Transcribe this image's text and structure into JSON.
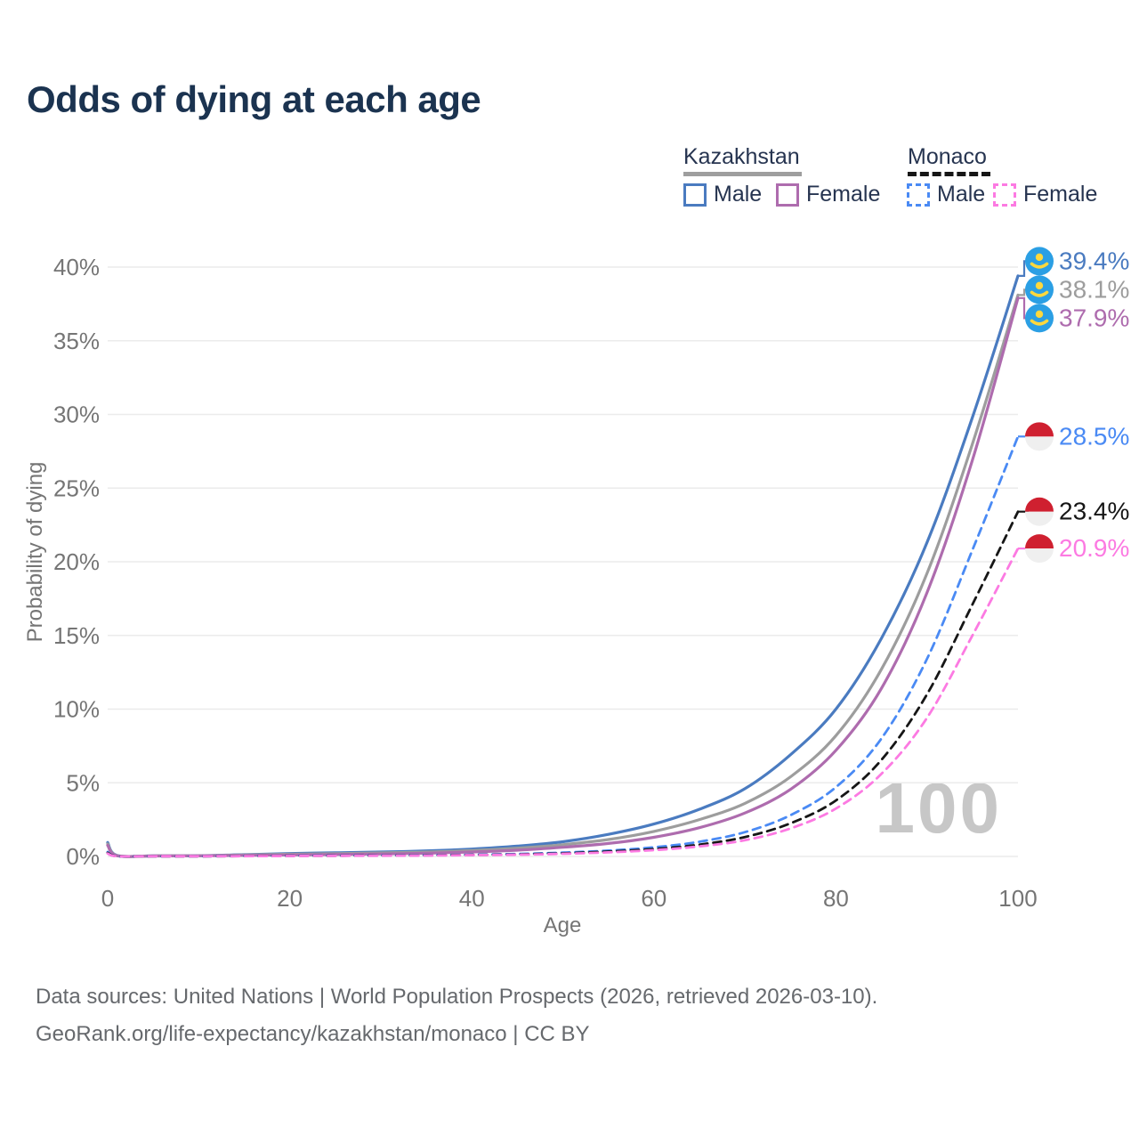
{
  "title": "Odds of dying at each age",
  "legend": {
    "groups": [
      {
        "label": "Kazakhstan",
        "underline_color": "#9e9e9e",
        "underline_style": "solid",
        "items": [
          {
            "label": "Male",
            "color": "#4a7bc0",
            "dash": false
          },
          {
            "label": "Female",
            "color": "#ae6cae",
            "dash": false
          }
        ]
      },
      {
        "label": "Monaco",
        "underline_color": "#161616",
        "underline_style": "dashed",
        "items": [
          {
            "label": "Male",
            "color": "#4a8af4",
            "dash": true
          },
          {
            "label": "Female",
            "color": "#fc7ae2",
            "dash": true
          }
        ]
      }
    ]
  },
  "chart_data": {
    "type": "line",
    "title": "Odds of dying at each age",
    "xlabel": "Age",
    "ylabel": "Probability of dying",
    "xlim": [
      0,
      100
    ],
    "ylim": [
      0,
      40.5
    ],
    "xticks": [
      0,
      20,
      40,
      60,
      80,
      100
    ],
    "ytick_labels": [
      "0%",
      "5%",
      "10%",
      "15%",
      "20%",
      "25%",
      "30%",
      "35%",
      "40%"
    ],
    "grid": "horizontal",
    "legend_position": "top-right",
    "watermark": "100",
    "x": [
      0,
      1,
      5,
      10,
      15,
      20,
      25,
      30,
      35,
      40,
      45,
      50,
      55,
      60,
      65,
      70,
      75,
      80,
      85,
      90,
      95,
      100
    ],
    "series": [
      {
        "name": "Kazakhstan Male",
        "country": "Kazakhstan",
        "sex": "Male",
        "flag": "kazakhstan",
        "color": "#4a7bc0",
        "dash": false,
        "end_label": "39.4%",
        "values": [
          0.95,
          0.07,
          0.04,
          0.05,
          0.12,
          0.2,
          0.25,
          0.3,
          0.38,
          0.5,
          0.7,
          1.0,
          1.5,
          2.2,
          3.2,
          4.6,
          6.9,
          10.0,
          14.8,
          21.3,
          29.8,
          39.4
        ]
      },
      {
        "name": "Kazakhstan Both sexes",
        "country": "Kazakhstan",
        "sex": "Both",
        "flag": "kazakhstan",
        "color": "#9d9d9d",
        "dash": false,
        "end_label": "38.1%",
        "values": [
          0.85,
          0.06,
          0.035,
          0.045,
          0.1,
          0.15,
          0.19,
          0.24,
          0.3,
          0.4,
          0.56,
          0.8,
          1.15,
          1.7,
          2.5,
          3.6,
          5.4,
          8.2,
          12.7,
          19.2,
          28.0,
          38.1
        ]
      },
      {
        "name": "Kazakhstan Female",
        "country": "Kazakhstan",
        "sex": "Female",
        "flag": "kazakhstan",
        "color": "#ae6cae",
        "dash": false,
        "end_label": "37.9%",
        "values": [
          0.75,
          0.05,
          0.03,
          0.04,
          0.07,
          0.1,
          0.13,
          0.17,
          0.22,
          0.3,
          0.42,
          0.62,
          0.88,
          1.3,
          1.95,
          2.95,
          4.55,
          7.2,
          11.4,
          17.9,
          26.9,
          37.9
        ]
      },
      {
        "name": "Monaco Male",
        "country": "Monaco",
        "sex": "Male",
        "flag": "monaco",
        "color": "#4a8af4",
        "dash": true,
        "end_label": "28.5%",
        "values": [
          0.3,
          0.02,
          0.01,
          0.01,
          0.03,
          0.05,
          0.06,
          0.07,
          0.09,
          0.12,
          0.17,
          0.26,
          0.4,
          0.62,
          1.0,
          1.65,
          2.8,
          4.7,
          8.0,
          13.4,
          20.8,
          28.5
        ]
      },
      {
        "name": "Monaco Both sexes",
        "country": "Monaco",
        "sex": "Both",
        "flag": "monaco",
        "color": "#161616",
        "dash": true,
        "end_label": "23.4%",
        "values": [
          0.25,
          0.02,
          0.01,
          0.01,
          0.025,
          0.04,
          0.05,
          0.06,
          0.08,
          0.1,
          0.14,
          0.21,
          0.33,
          0.5,
          0.8,
          1.32,
          2.25,
          3.8,
          6.55,
          11.0,
          17.1,
          23.4
        ]
      },
      {
        "name": "Monaco Female",
        "country": "Monaco",
        "sex": "Female",
        "flag": "monaco",
        "color": "#fc7ae2",
        "dash": true,
        "end_label": "20.9%",
        "values": [
          0.2,
          0.015,
          0.01,
          0.01,
          0.02,
          0.03,
          0.04,
          0.05,
          0.06,
          0.09,
          0.12,
          0.18,
          0.28,
          0.43,
          0.68,
          1.1,
          1.9,
          3.25,
          5.6,
          9.4,
          15.0,
          20.9
        ]
      }
    ]
  },
  "footer": {
    "line1": "Data sources: United Nations | World Population Prospects (2026, retrieved 2026-03-10).",
    "line2": "GeoRank.org/life-expectancy/kazakhstan/monaco | CC BY"
  }
}
